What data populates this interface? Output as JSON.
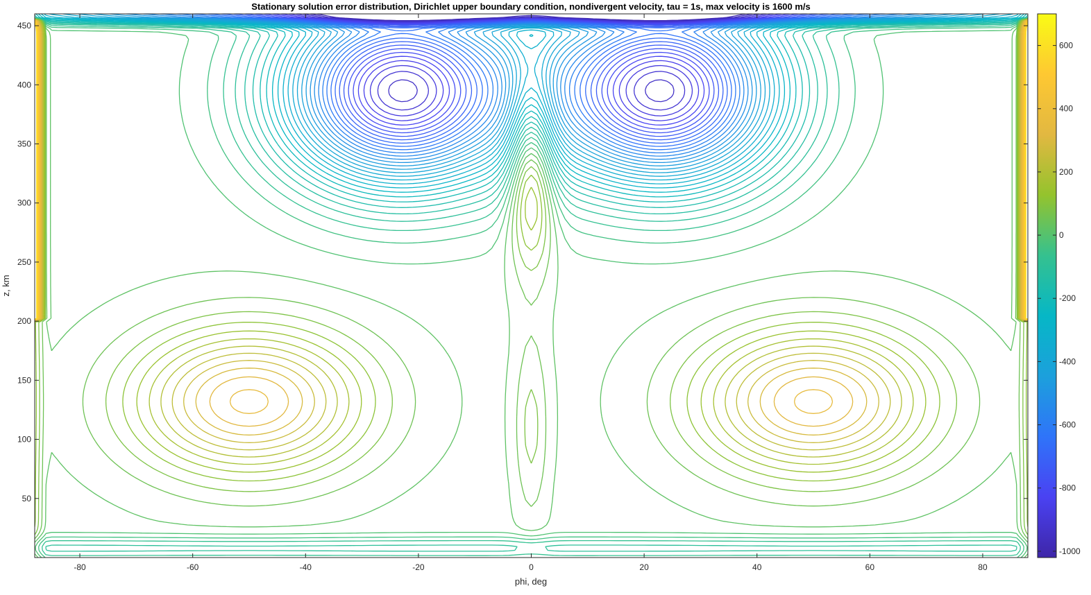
{
  "chart_data": {
    "type": "contour",
    "title": "Stationary solution error distribution, Dirichlet upper boundary condition, nondivergent velocity, tau = 1s, max velocity is 1600 m/s",
    "xlabel": "phi, deg",
    "ylabel": "z, km",
    "xlim": [
      -88,
      88
    ],
    "ylim": [
      0,
      460
    ],
    "xticks": [
      -80,
      -60,
      -40,
      -20,
      0,
      20,
      40,
      60,
      80
    ],
    "yticks": [
      50,
      100,
      150,
      200,
      250,
      300,
      350,
      400,
      450
    ],
    "colorbar": {
      "range": [
        -1020,
        700
      ],
      "ticks": [
        600,
        400,
        200,
        0,
        -200,
        -400,
        -600,
        -800,
        -1000
      ],
      "colormap": "parula",
      "colors": [
        "#3e26a8",
        "#4a42f2",
        "#2f74f9",
        "#1ca0dc",
        "#06b7c6",
        "#35c18f",
        "#94c32d",
        "#e2b841",
        "#fec832",
        "#f9fb15"
      ]
    },
    "grid": false,
    "features": [
      {
        "name": "upper-right-low",
        "phi": 23,
        "z": 395,
        "value": -950
      },
      {
        "name": "upper-left-low",
        "phi": -23,
        "z": 395,
        "value": -950
      },
      {
        "name": "lower-left-high",
        "phi": -50,
        "z": 132,
        "value": 350
      },
      {
        "name": "lower-right-high",
        "phi": 50,
        "z": 132,
        "value": 350
      },
      {
        "name": "central-upper-high",
        "phi": 0,
        "z": 340,
        "value": 330
      },
      {
        "name": "central-lower-column",
        "phi": 0,
        "z": 110,
        "value": 80
      }
    ]
  }
}
